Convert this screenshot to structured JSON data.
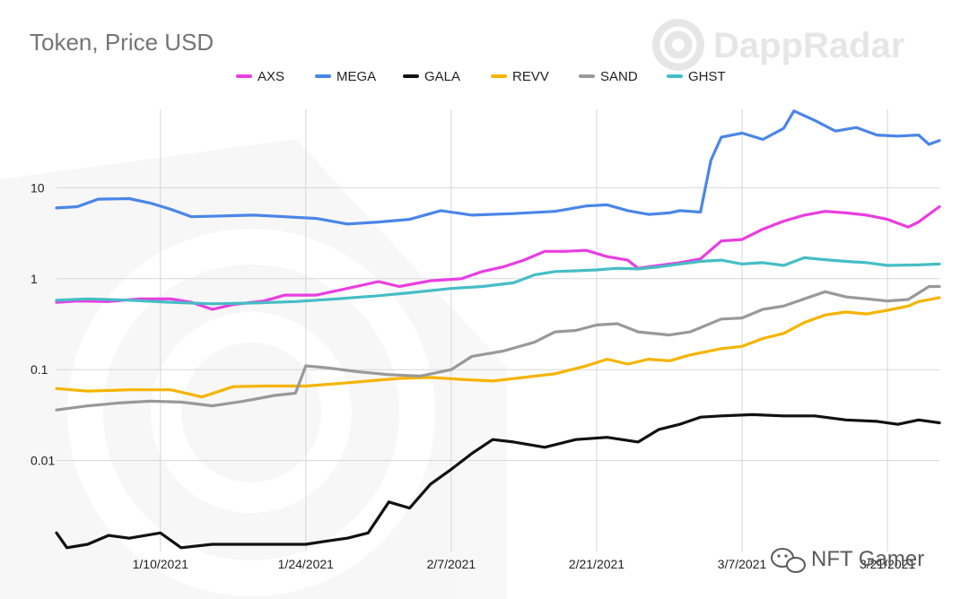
{
  "chart_data": {
    "type": "line",
    "title": "Token, Price USD",
    "yscale": "log",
    "ylim": [
      0.001,
      100
    ],
    "y_tick_labels": [
      {
        "value": 10,
        "label": "10"
      },
      {
        "value": 1,
        "label": "1"
      },
      {
        "value": 0.1,
        "label": "0.1"
      },
      {
        "value": 0.01,
        "label": "0.01"
      }
    ],
    "x_start": "2020-12-31",
    "x_end": "2021-03-26",
    "x_tick_labels": [
      {
        "date": "2021-01-10",
        "label": "1/10/2021"
      },
      {
        "date": "2021-01-24",
        "label": "1/24/2021"
      },
      {
        "date": "2021-02-07",
        "label": "2/7/2021"
      },
      {
        "date": "2021-02-21",
        "label": "2/21/2021"
      },
      {
        "date": "2021-03-07",
        "label": "3/7/2021"
      },
      {
        "date": "2021-03-21",
        "label": "3/21/2021"
      }
    ],
    "vertical_grid_dates": [
      "2021-01-10",
      "2021-01-24",
      "2021-02-07",
      "2021-02-21",
      "2021-03-07",
      "2021-03-21"
    ],
    "legend_position": "top-center",
    "series": [
      {
        "name": "AXS",
        "color": "#e93de1",
        "points": [
          [
            "2020-12-31",
            0.55
          ],
          [
            "2021-01-02",
            0.57
          ],
          [
            "2021-01-05",
            0.56
          ],
          [
            "2021-01-08",
            0.6
          ],
          [
            "2021-01-11",
            0.6
          ],
          [
            "2021-01-13",
            0.55
          ],
          [
            "2021-01-15",
            0.46
          ],
          [
            "2021-01-17",
            0.52
          ],
          [
            "2021-01-20",
            0.57
          ],
          [
            "2021-01-22",
            0.66
          ],
          [
            "2021-01-25",
            0.66
          ],
          [
            "2021-01-28",
            0.78
          ],
          [
            "2021-01-31",
            0.93
          ],
          [
            "2021-02-02",
            0.82
          ],
          [
            "2021-02-05",
            0.95
          ],
          [
            "2021-02-08",
            1.0
          ],
          [
            "2021-02-10",
            1.2
          ],
          [
            "2021-02-12",
            1.35
          ],
          [
            "2021-02-14",
            1.6
          ],
          [
            "2021-02-16",
            2.0
          ],
          [
            "2021-02-18",
            2.0
          ],
          [
            "2021-02-20",
            2.05
          ],
          [
            "2021-02-22",
            1.75
          ],
          [
            "2021-02-24",
            1.6
          ],
          [
            "2021-02-25",
            1.3
          ],
          [
            "2021-02-27",
            1.4
          ],
          [
            "2021-03-01",
            1.5
          ],
          [
            "2021-03-03",
            1.65
          ],
          [
            "2021-03-05",
            2.6
          ],
          [
            "2021-03-07",
            2.7
          ],
          [
            "2021-03-09",
            3.5
          ],
          [
            "2021-03-11",
            4.3
          ],
          [
            "2021-03-13",
            5.0
          ],
          [
            "2021-03-15",
            5.5
          ],
          [
            "2021-03-17",
            5.3
          ],
          [
            "2021-03-19",
            5.0
          ],
          [
            "2021-03-21",
            4.5
          ],
          [
            "2021-03-23",
            3.7
          ],
          [
            "2021-03-24",
            4.2
          ],
          [
            "2021-03-26",
            6.2
          ]
        ]
      },
      {
        "name": "MEGA",
        "color": "#4a86e8",
        "points": [
          [
            "2020-12-31",
            6.0
          ],
          [
            "2021-01-02",
            6.2
          ],
          [
            "2021-01-04",
            7.5
          ],
          [
            "2021-01-07",
            7.6
          ],
          [
            "2021-01-09",
            6.8
          ],
          [
            "2021-01-11",
            5.8
          ],
          [
            "2021-01-13",
            4.8
          ],
          [
            "2021-01-16",
            4.9
          ],
          [
            "2021-01-19",
            5.0
          ],
          [
            "2021-01-22",
            4.8
          ],
          [
            "2021-01-25",
            4.6
          ],
          [
            "2021-01-28",
            4.0
          ],
          [
            "2021-01-31",
            4.2
          ],
          [
            "2021-02-03",
            4.5
          ],
          [
            "2021-02-06",
            5.6
          ],
          [
            "2021-02-09",
            5.0
          ],
          [
            "2021-02-13",
            5.2
          ],
          [
            "2021-02-17",
            5.5
          ],
          [
            "2021-02-20",
            6.3
          ],
          [
            "2021-02-22",
            6.5
          ],
          [
            "2021-02-24",
            5.6
          ],
          [
            "2021-02-26",
            5.1
          ],
          [
            "2021-02-28",
            5.3
          ],
          [
            "2021-03-01",
            5.6
          ],
          [
            "2021-03-03",
            5.4
          ],
          [
            "2021-03-04",
            20
          ],
          [
            "2021-03-05",
            36
          ],
          [
            "2021-03-07",
            40
          ],
          [
            "2021-03-09",
            34
          ],
          [
            "2021-03-11",
            45
          ],
          [
            "2021-03-12",
            70
          ],
          [
            "2021-03-14",
            55
          ],
          [
            "2021-03-16",
            42
          ],
          [
            "2021-03-18",
            46
          ],
          [
            "2021-03-20",
            38
          ],
          [
            "2021-03-22",
            37
          ],
          [
            "2021-03-24",
            38
          ],
          [
            "2021-03-25",
            30
          ],
          [
            "2021-03-26",
            33
          ]
        ]
      },
      {
        "name": "GALA",
        "color": "#111111",
        "points": [
          [
            "2020-12-31",
            0.0016
          ],
          [
            "2021-01-01",
            0.0011
          ],
          [
            "2021-01-03",
            0.0012
          ],
          [
            "2021-01-05",
            0.0015
          ],
          [
            "2021-01-07",
            0.0014
          ],
          [
            "2021-01-10",
            0.0016
          ],
          [
            "2021-01-12",
            0.0011
          ],
          [
            "2021-01-15",
            0.0012
          ],
          [
            "2021-01-18",
            0.0012
          ],
          [
            "2021-01-21",
            0.0012
          ],
          [
            "2021-01-24",
            0.0012
          ],
          [
            "2021-01-26",
            0.0013
          ],
          [
            "2021-01-28",
            0.0014
          ],
          [
            "2021-01-30",
            0.0016
          ],
          [
            "2021-02-01",
            0.0035
          ],
          [
            "2021-02-03",
            0.003
          ],
          [
            "2021-02-05",
            0.0055
          ],
          [
            "2021-02-07",
            0.008
          ],
          [
            "2021-02-09",
            0.012
          ],
          [
            "2021-02-11",
            0.017
          ],
          [
            "2021-02-13",
            0.016
          ],
          [
            "2021-02-16",
            0.014
          ],
          [
            "2021-02-19",
            0.017
          ],
          [
            "2021-02-22",
            0.018
          ],
          [
            "2021-02-25",
            0.016
          ],
          [
            "2021-02-27",
            0.022
          ],
          [
            "2021-03-01",
            0.025
          ],
          [
            "2021-03-03",
            0.03
          ],
          [
            "2021-03-05",
            0.031
          ],
          [
            "2021-03-08",
            0.032
          ],
          [
            "2021-03-11",
            0.031
          ],
          [
            "2021-03-14",
            0.031
          ],
          [
            "2021-03-17",
            0.028
          ],
          [
            "2021-03-20",
            0.027
          ],
          [
            "2021-03-22",
            0.025
          ],
          [
            "2021-03-24",
            0.028
          ],
          [
            "2021-03-26",
            0.026
          ]
        ]
      },
      {
        "name": "REVV",
        "color": "#f6b400",
        "points": [
          [
            "2020-12-31",
            0.062
          ],
          [
            "2021-01-03",
            0.058
          ],
          [
            "2021-01-07",
            0.06
          ],
          [
            "2021-01-11",
            0.06
          ],
          [
            "2021-01-14",
            0.05
          ],
          [
            "2021-01-17",
            0.065
          ],
          [
            "2021-01-20",
            0.066
          ],
          [
            "2021-01-24",
            0.066
          ],
          [
            "2021-01-27",
            0.07
          ],
          [
            "2021-01-30",
            0.075
          ],
          [
            "2021-02-02",
            0.08
          ],
          [
            "2021-02-05",
            0.082
          ],
          [
            "2021-02-08",
            0.078
          ],
          [
            "2021-02-11",
            0.075
          ],
          [
            "2021-02-14",
            0.082
          ],
          [
            "2021-02-17",
            0.09
          ],
          [
            "2021-02-20",
            0.11
          ],
          [
            "2021-02-22",
            0.13
          ],
          [
            "2021-02-24",
            0.115
          ],
          [
            "2021-02-26",
            0.13
          ],
          [
            "2021-02-28",
            0.125
          ],
          [
            "2021-03-02",
            0.145
          ],
          [
            "2021-03-05",
            0.17
          ],
          [
            "2021-03-07",
            0.18
          ],
          [
            "2021-03-09",
            0.22
          ],
          [
            "2021-03-11",
            0.25
          ],
          [
            "2021-03-13",
            0.33
          ],
          [
            "2021-03-15",
            0.4
          ],
          [
            "2021-03-17",
            0.43
          ],
          [
            "2021-03-19",
            0.41
          ],
          [
            "2021-03-21",
            0.45
          ],
          [
            "2021-03-23",
            0.5
          ],
          [
            "2021-03-24",
            0.56
          ],
          [
            "2021-03-26",
            0.62
          ]
        ]
      },
      {
        "name": "SAND",
        "color": "#999999",
        "points": [
          [
            "2020-12-31",
            0.036
          ],
          [
            "2021-01-03",
            0.04
          ],
          [
            "2021-01-06",
            0.043
          ],
          [
            "2021-01-09",
            0.045
          ],
          [
            "2021-01-12",
            0.044
          ],
          [
            "2021-01-15",
            0.04
          ],
          [
            "2021-01-18",
            0.045
          ],
          [
            "2021-01-21",
            0.052
          ],
          [
            "2021-01-23",
            0.055
          ],
          [
            "2021-01-24",
            0.11
          ],
          [
            "2021-01-26",
            0.105
          ],
          [
            "2021-01-29",
            0.095
          ],
          [
            "2021-02-01",
            0.088
          ],
          [
            "2021-02-04",
            0.085
          ],
          [
            "2021-02-07",
            0.1
          ],
          [
            "2021-02-09",
            0.14
          ],
          [
            "2021-02-12",
            0.16
          ],
          [
            "2021-02-15",
            0.2
          ],
          [
            "2021-02-17",
            0.26
          ],
          [
            "2021-02-19",
            0.27
          ],
          [
            "2021-02-21",
            0.31
          ],
          [
            "2021-02-23",
            0.32
          ],
          [
            "2021-02-25",
            0.26
          ],
          [
            "2021-02-28",
            0.24
          ],
          [
            "2021-03-02",
            0.26
          ],
          [
            "2021-03-05",
            0.36
          ],
          [
            "2021-03-07",
            0.37
          ],
          [
            "2021-03-09",
            0.46
          ],
          [
            "2021-03-11",
            0.5
          ],
          [
            "2021-03-13",
            0.6
          ],
          [
            "2021-03-15",
            0.72
          ],
          [
            "2021-03-17",
            0.63
          ],
          [
            "2021-03-19",
            0.6
          ],
          [
            "2021-03-21",
            0.57
          ],
          [
            "2021-03-23",
            0.59
          ],
          [
            "2021-03-25",
            0.82
          ],
          [
            "2021-03-26",
            0.82
          ]
        ]
      },
      {
        "name": "GHST",
        "color": "#46bdc6",
        "points": [
          [
            "2020-12-31",
            0.58
          ],
          [
            "2021-01-03",
            0.6
          ],
          [
            "2021-01-07",
            0.58
          ],
          [
            "2021-01-11",
            0.55
          ],
          [
            "2021-01-15",
            0.53
          ],
          [
            "2021-01-19",
            0.54
          ],
          [
            "2021-01-23",
            0.56
          ],
          [
            "2021-01-27",
            0.6
          ],
          [
            "2021-01-31",
            0.65
          ],
          [
            "2021-02-03",
            0.7
          ],
          [
            "2021-02-07",
            0.78
          ],
          [
            "2021-02-10",
            0.82
          ],
          [
            "2021-02-13",
            0.9
          ],
          [
            "2021-02-15",
            1.1
          ],
          [
            "2021-02-17",
            1.2
          ],
          [
            "2021-02-19",
            1.22
          ],
          [
            "2021-02-21",
            1.25
          ],
          [
            "2021-02-23",
            1.3
          ],
          [
            "2021-02-25",
            1.28
          ],
          [
            "2021-02-27",
            1.35
          ],
          [
            "2021-03-01",
            1.45
          ],
          [
            "2021-03-03",
            1.55
          ],
          [
            "2021-03-05",
            1.6
          ],
          [
            "2021-03-07",
            1.45
          ],
          [
            "2021-03-09",
            1.5
          ],
          [
            "2021-03-11",
            1.4
          ],
          [
            "2021-03-13",
            1.7
          ],
          [
            "2021-03-15",
            1.62
          ],
          [
            "2021-03-17",
            1.55
          ],
          [
            "2021-03-19",
            1.5
          ],
          [
            "2021-03-21",
            1.4
          ],
          [
            "2021-03-24",
            1.42
          ],
          [
            "2021-03-26",
            1.45
          ]
        ]
      }
    ]
  },
  "branding": {
    "name": "DappRadar",
    "watermark_text": "NFT Gamer",
    "watermark_icon": "wechat-icon"
  },
  "colors": {
    "brand_watermark": "#e6e6e6",
    "grid": "#d7d7d7"
  }
}
